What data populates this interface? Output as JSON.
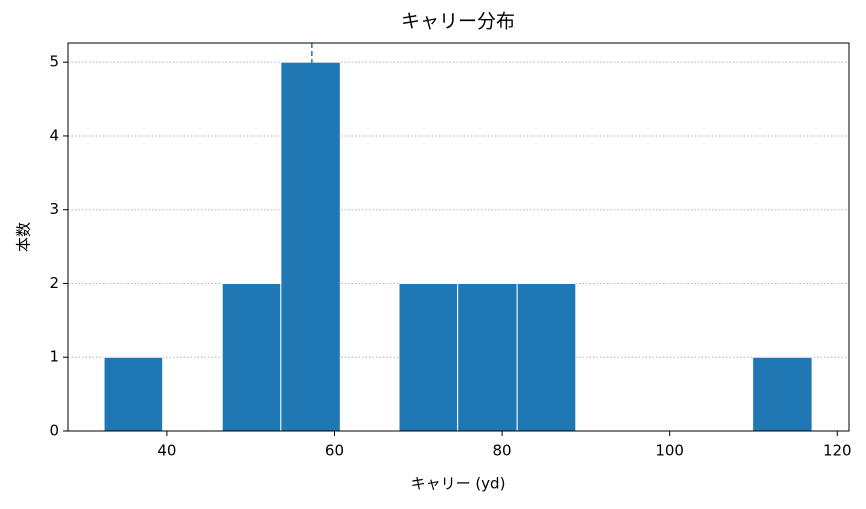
{
  "chart_data": {
    "type": "histogram",
    "title": "キャリー分布",
    "x_label": "キャリー (yd)",
    "y_label": "本数",
    "bins": [
      32.5,
      39.5,
      46.6,
      53.6,
      60.7,
      67.7,
      74.7,
      81.8,
      88.8,
      95.9,
      102.9,
      109.9,
      117.0
    ],
    "counts": [
      1,
      0,
      2,
      5,
      0,
      2,
      2,
      2,
      0,
      0,
      0,
      1
    ],
    "color": "#1f77b4",
    "vline": 57.3,
    "vline_color": "#1f77b4",
    "xlim": [
      28.2,
      121.4
    ],
    "ylim": [
      0,
      5.26
    ],
    "xticks": [
      40,
      60,
      80,
      100,
      120
    ],
    "yticks": [
      0,
      1,
      2,
      3,
      4,
      5
    ],
    "grid": true
  }
}
